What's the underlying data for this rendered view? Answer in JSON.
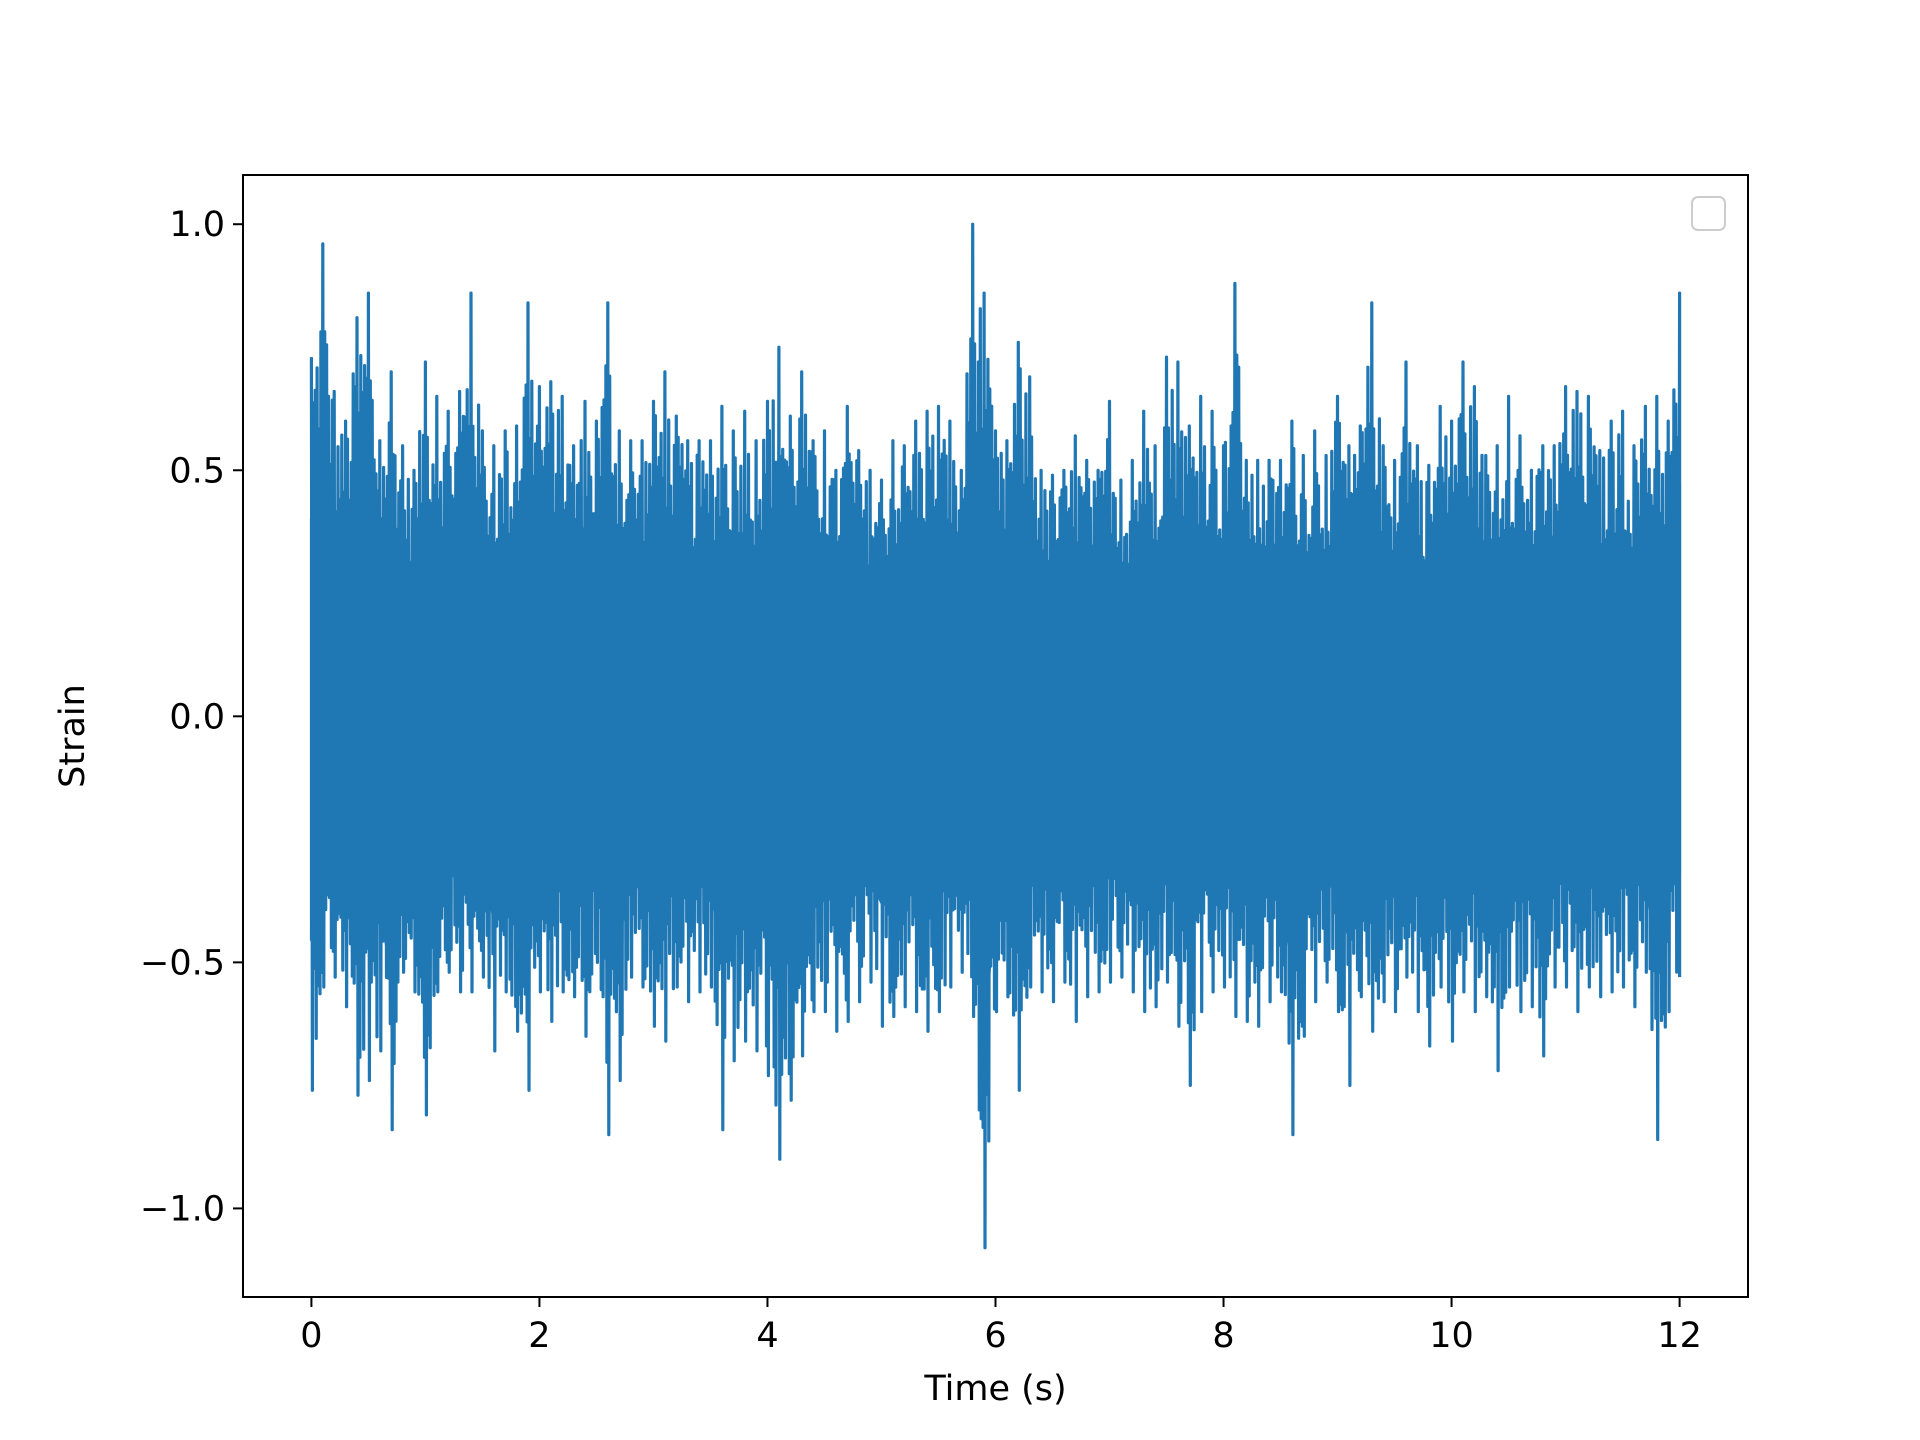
{
  "chart_data": {
    "type": "line",
    "title": "",
    "xlabel": "Time (s)",
    "ylabel": "Strain",
    "xlim": [
      -0.6,
      12.6
    ],
    "ylim": [
      -1.18,
      1.1
    ],
    "x_ticks": [
      0,
      2,
      4,
      6,
      8,
      10,
      12
    ],
    "x_tick_labels": [
      "0",
      "2",
      "4",
      "6",
      "8",
      "10",
      "12"
    ],
    "y_ticks": [
      -1.0,
      -0.5,
      0.0,
      0.5,
      1.0
    ],
    "y_tick_labels": [
      "−1.0",
      "−0.5",
      "0.0",
      "0.5",
      "1.0"
    ],
    "grid": false,
    "legend": {
      "placement": "upper-right",
      "entries": []
    },
    "series_color": "#1f77b4",
    "series": [
      {
        "x": [
          0.0,
          0.1,
          0.2,
          0.3,
          0.4,
          0.5,
          0.6,
          0.7,
          0.8,
          0.9,
          1.0,
          1.1,
          1.2,
          1.3,
          1.4,
          1.5,
          1.6,
          1.7,
          1.8,
          1.9,
          2.0,
          2.1,
          2.2,
          2.3,
          2.4,
          2.5,
          2.6,
          2.7,
          2.8,
          2.9,
          3.0,
          3.1,
          3.2,
          3.3,
          3.4,
          3.5,
          3.6,
          3.7,
          3.8,
          3.9,
          4.0,
          4.1,
          4.2,
          4.3,
          4.4,
          4.5,
          4.6,
          4.7,
          4.8,
          4.9,
          5.0,
          5.1,
          5.2,
          5.3,
          5.4,
          5.5,
          5.6,
          5.7,
          5.8,
          5.9,
          6.0,
          6.1,
          6.2,
          6.3,
          6.4,
          6.5,
          6.6,
          6.7,
          6.8,
          6.9,
          7.0,
          7.1,
          7.2,
          7.3,
          7.4,
          7.5,
          7.6,
          7.7,
          7.8,
          7.9,
          8.0,
          8.1,
          8.2,
          8.3,
          8.4,
          8.5,
          8.6,
          8.7,
          8.8,
          8.9,
          9.0,
          9.1,
          9.2,
          9.3,
          9.4,
          9.5,
          9.6,
          9.7,
          9.8,
          9.9,
          10.0,
          10.1,
          10.2,
          10.3,
          10.4,
          10.5,
          10.6,
          10.7,
          10.8,
          10.9,
          11.0,
          11.1,
          11.2,
          11.3,
          11.4,
          11.5,
          11.6,
          11.7,
          11.8,
          11.9,
          12.0
        ],
        "upper": [
          0.73,
          0.96,
          0.66,
          0.6,
          0.81,
          0.86,
          0.56,
          0.7,
          0.55,
          0.5,
          0.72,
          0.65,
          0.62,
          0.66,
          0.86,
          0.58,
          0.55,
          0.58,
          0.59,
          0.84,
          0.67,
          0.68,
          0.65,
          0.55,
          0.64,
          0.6,
          0.84,
          0.58,
          0.56,
          0.56,
          0.64,
          0.7,
          0.61,
          0.56,
          0.56,
          0.56,
          0.63,
          0.58,
          0.62,
          0.56,
          0.64,
          0.75,
          0.61,
          0.7,
          0.56,
          0.58,
          0.5,
          0.63,
          0.54,
          0.5,
          0.48,
          0.56,
          0.55,
          0.6,
          0.62,
          0.63,
          0.6,
          0.5,
          1.0,
          0.86,
          0.58,
          0.56,
          0.76,
          0.69,
          0.5,
          0.49,
          0.5,
          0.57,
          0.52,
          0.5,
          0.64,
          0.48,
          0.52,
          0.62,
          0.55,
          0.73,
          0.72,
          0.59,
          0.65,
          0.62,
          0.55,
          0.88,
          0.52,
          0.52,
          0.52,
          0.52,
          0.6,
          0.53,
          0.58,
          0.53,
          0.65,
          0.55,
          0.59,
          0.84,
          0.55,
          0.52,
          0.72,
          0.55,
          0.51,
          0.63,
          0.6,
          0.72,
          0.67,
          0.53,
          0.55,
          0.65,
          0.57,
          0.5,
          0.55,
          0.55,
          0.67,
          0.66,
          0.65,
          0.54,
          0.6,
          0.62,
          0.55,
          0.63,
          0.65,
          0.6,
          0.86
        ],
        "lower": [
          -0.76,
          -0.55,
          -0.53,
          -0.59,
          -0.77,
          -0.74,
          -0.68,
          -0.84,
          -0.52,
          -0.56,
          -0.81,
          -0.56,
          -0.52,
          -0.56,
          -0.56,
          -0.53,
          -0.68,
          -0.56,
          -0.64,
          -0.76,
          -0.56,
          -0.62,
          -0.56,
          -0.57,
          -0.65,
          -0.5,
          -0.85,
          -0.74,
          -0.53,
          -0.55,
          -0.63,
          -0.66,
          -0.55,
          -0.58,
          -0.56,
          -0.55,
          -0.84,
          -0.7,
          -0.66,
          -0.68,
          -0.73,
          -0.9,
          -0.78,
          -0.69,
          -0.6,
          -0.6,
          -0.64,
          -0.62,
          -0.58,
          -0.54,
          -0.63,
          -0.61,
          -0.59,
          -0.6,
          -0.64,
          -0.6,
          -0.55,
          -0.52,
          -0.61,
          -1.08,
          -0.6,
          -0.57,
          -0.76,
          -0.55,
          -0.56,
          -0.58,
          -0.54,
          -0.62,
          -0.57,
          -0.56,
          -0.54,
          -0.53,
          -0.56,
          -0.6,
          -0.59,
          -0.54,
          -0.63,
          -0.75,
          -0.6,
          -0.56,
          -0.55,
          -0.61,
          -0.62,
          -0.63,
          -0.58,
          -0.56,
          -0.85,
          -0.65,
          -0.58,
          -0.54,
          -0.6,
          -0.75,
          -0.57,
          -0.64,
          -0.58,
          -0.6,
          -0.53,
          -0.6,
          -0.67,
          -0.55,
          -0.66,
          -0.56,
          -0.6,
          -0.57,
          -0.72,
          -0.55,
          -0.6,
          -0.59,
          -0.69,
          -0.55,
          -0.55,
          -0.6,
          -0.55,
          -0.57,
          -0.56,
          -0.55,
          -0.59,
          -0.52,
          -0.86,
          -0.6,
          -0.53
        ]
      }
    ]
  }
}
